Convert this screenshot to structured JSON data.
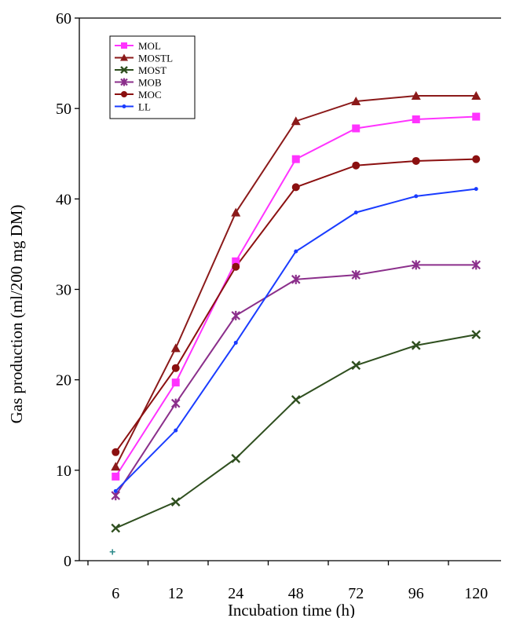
{
  "chart_data": {
    "type": "line",
    "xlabel": "Incubation time (h)",
    "ylabel": "Gas production (ml/200 mg DM)",
    "categories": [
      "6",
      "12",
      "24",
      "48",
      "72",
      "96",
      "120"
    ],
    "y_ticks": [
      "0",
      "10",
      "20",
      "30",
      "40",
      "50",
      "60"
    ],
    "ylim": [
      0,
      60
    ],
    "grid": false,
    "legend_position": "top-left",
    "series": [
      {
        "name": "MOL",
        "color": "#ff33ff",
        "marker": "square",
        "values": [
          9.3,
          19.7,
          33.1,
          44.4,
          47.8,
          48.8,
          49.1
        ]
      },
      {
        "name": "MOSTL",
        "color": "#8b1a1a",
        "marker": "triangle",
        "values": [
          10.4,
          23.5,
          38.5,
          48.6,
          50.8,
          51.4,
          51.4
        ]
      },
      {
        "name": "MOST",
        "color": "#2f4f1f",
        "marker": "x",
        "values": [
          3.6,
          6.5,
          11.3,
          17.8,
          21.6,
          23.8,
          25.0
        ]
      },
      {
        "name": "MOB",
        "color": "#8b2f8b",
        "marker": "star",
        "values": [
          7.2,
          17.4,
          27.1,
          31.1,
          31.6,
          32.7,
          32.7
        ]
      },
      {
        "name": "MOC",
        "color": "#8b1010",
        "marker": "circle",
        "values": [
          12.0,
          21.3,
          32.5,
          41.3,
          43.7,
          44.2,
          44.4
        ]
      },
      {
        "name": "LL",
        "color": "#1a3cff",
        "marker": "dot",
        "values": [
          7.7,
          14.4,
          24.1,
          34.2,
          38.5,
          40.3,
          41.1
        ]
      }
    ],
    "annotations": [
      {
        "text": "+",
        "x": "6",
        "y": 1.0,
        "color": "#2e8b8b"
      }
    ]
  }
}
